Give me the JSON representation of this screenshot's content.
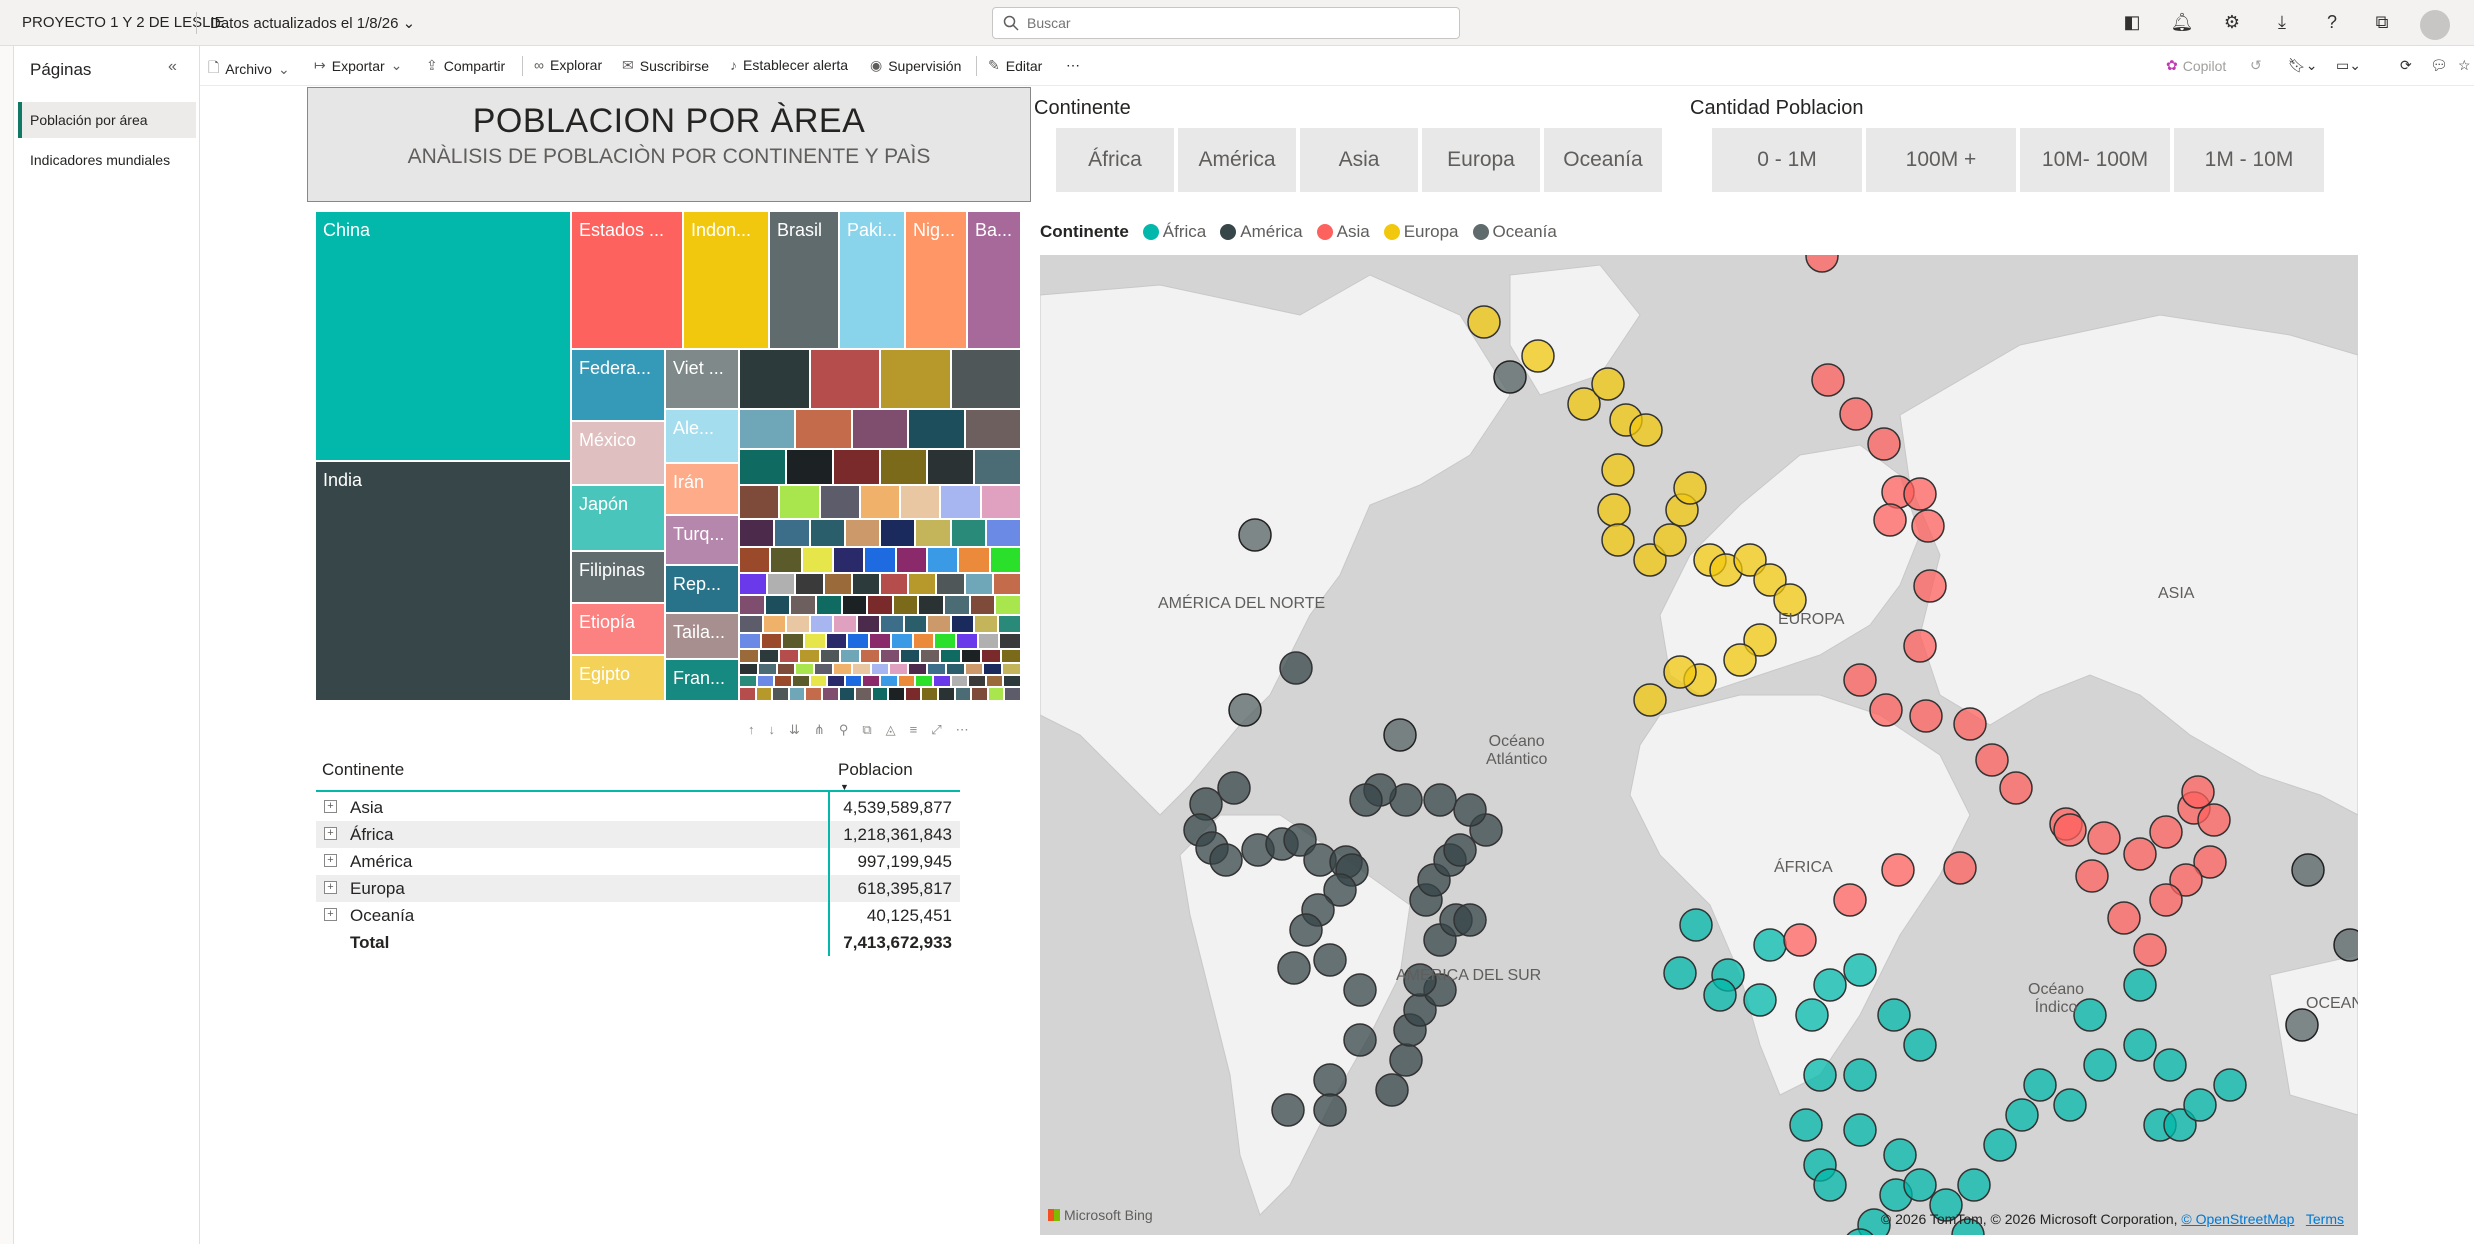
{
  "app": {
    "title": "PROYECTO 1 Y 2 DE LESLIE",
    "updated": "Datos actualizados el 1/8/26"
  },
  "search": {
    "placeholder": "Buscar"
  },
  "pages": {
    "header": "Páginas",
    "items": [
      {
        "label": "Población por área",
        "active": true
      },
      {
        "label": "Indicadores mundiales",
        "active": false
      }
    ]
  },
  "toolbar": {
    "archivo": "Archivo",
    "exportar": "Exportar",
    "compartir": "Compartir",
    "explorar": "Explorar",
    "suscribirse": "Suscribirse",
    "alerta": "Establecer alerta",
    "supervision": "Supervisión",
    "editar": "Editar",
    "more": "⋯",
    "copilot": "Copilot"
  },
  "report_title": {
    "title": "POBLACION POR ÀREA",
    "subtitle": "ANÀLISIS DE POBLACIÒN POR CONTINENTE Y PAÌS"
  },
  "treemap": {
    "tiles": [
      {
        "label": "China",
        "color": "#01b8aa"
      },
      {
        "label": "India",
        "color": "#374649"
      },
      {
        "label": "Estados ...",
        "color": "#fd625e"
      },
      {
        "label": "Indon...",
        "color": "#f2c80f"
      },
      {
        "label": "Brasil",
        "color": "#5f6b6d"
      },
      {
        "label": "Paki...",
        "color": "#8ad4eb"
      },
      {
        "label": "Nig...",
        "color": "#fe9666"
      },
      {
        "label": "Ba...",
        "color": "#a66999"
      },
      {
        "label": "Federa...",
        "color": "#3599b8"
      },
      {
        "label": "México",
        "color": "#dfbfbf"
      },
      {
        "label": "Japón",
        "color": "#4ac5bb"
      },
      {
        "label": "Filipinas",
        "color": "#5f6b6d"
      },
      {
        "label": "Etiopía",
        "color": "#fb8281"
      },
      {
        "label": "Egipto",
        "color": "#f4d25a"
      },
      {
        "label": "Viet ...",
        "color": "#7f898a"
      },
      {
        "label": "Ale...",
        "color": "#a4ddee"
      },
      {
        "label": "Irán",
        "color": "#fdab89"
      },
      {
        "label": "Turq...",
        "color": "#b687ac"
      },
      {
        "label": "Rep...",
        "color": "#28738a"
      },
      {
        "label": "Taila...",
        "color": "#a78f8f"
      },
      {
        "label": "Fran...",
        "color": "#168980"
      }
    ]
  },
  "matrix": {
    "col1": "Continente",
    "col2": "Poblacion",
    "rows": [
      {
        "name": "Asia",
        "value": "4,539,589,877"
      },
      {
        "name": "África",
        "value": "1,218,361,843"
      },
      {
        "name": "América",
        "value": "997,199,945"
      },
      {
        "name": "Europa",
        "value": "618,395,817"
      },
      {
        "name": "Oceanía",
        "value": "40,125,451"
      }
    ],
    "total_label": "Total",
    "total_value": "7,413,672,933",
    "expand_glyph": "+"
  },
  "slicer_continent": {
    "title": "Continente",
    "options": [
      "África",
      "América",
      "Asia",
      "Europa",
      "Oceanía"
    ]
  },
  "slicer_population": {
    "title": "Cantidad Poblacion",
    "options": [
      "0 - 1M",
      "100M +",
      "10M- 100M",
      "1M - 10M"
    ]
  },
  "legend": {
    "title": "Continente",
    "items": [
      {
        "label": "África",
        "color": "#01b8aa"
      },
      {
        "label": "América",
        "color": "#374649"
      },
      {
        "label": "Asia",
        "color": "#fd625e"
      },
      {
        "label": "Europa",
        "color": "#f2c80f"
      },
      {
        "label": "Oceanía",
        "color": "#5f6b6d"
      }
    ]
  },
  "map": {
    "labels": {
      "na": "AMÉRICA DEL NORTE",
      "sa": "AMÉRICA DEL SUR",
      "asia": "ASIA",
      "africa": "ÁFRICA",
      "europa": "EUROPA",
      "atl": "Océano\nAtlántico",
      "ind": "Océano\nÍndico",
      "oce": "OCEAN"
    },
    "bing": "Microsoft Bing",
    "credits": "© 2026 TomTom, © 2026 Microsoft Corporation,",
    "osm": "© OpenStreetMap",
    "terms": "Terms"
  }
}
